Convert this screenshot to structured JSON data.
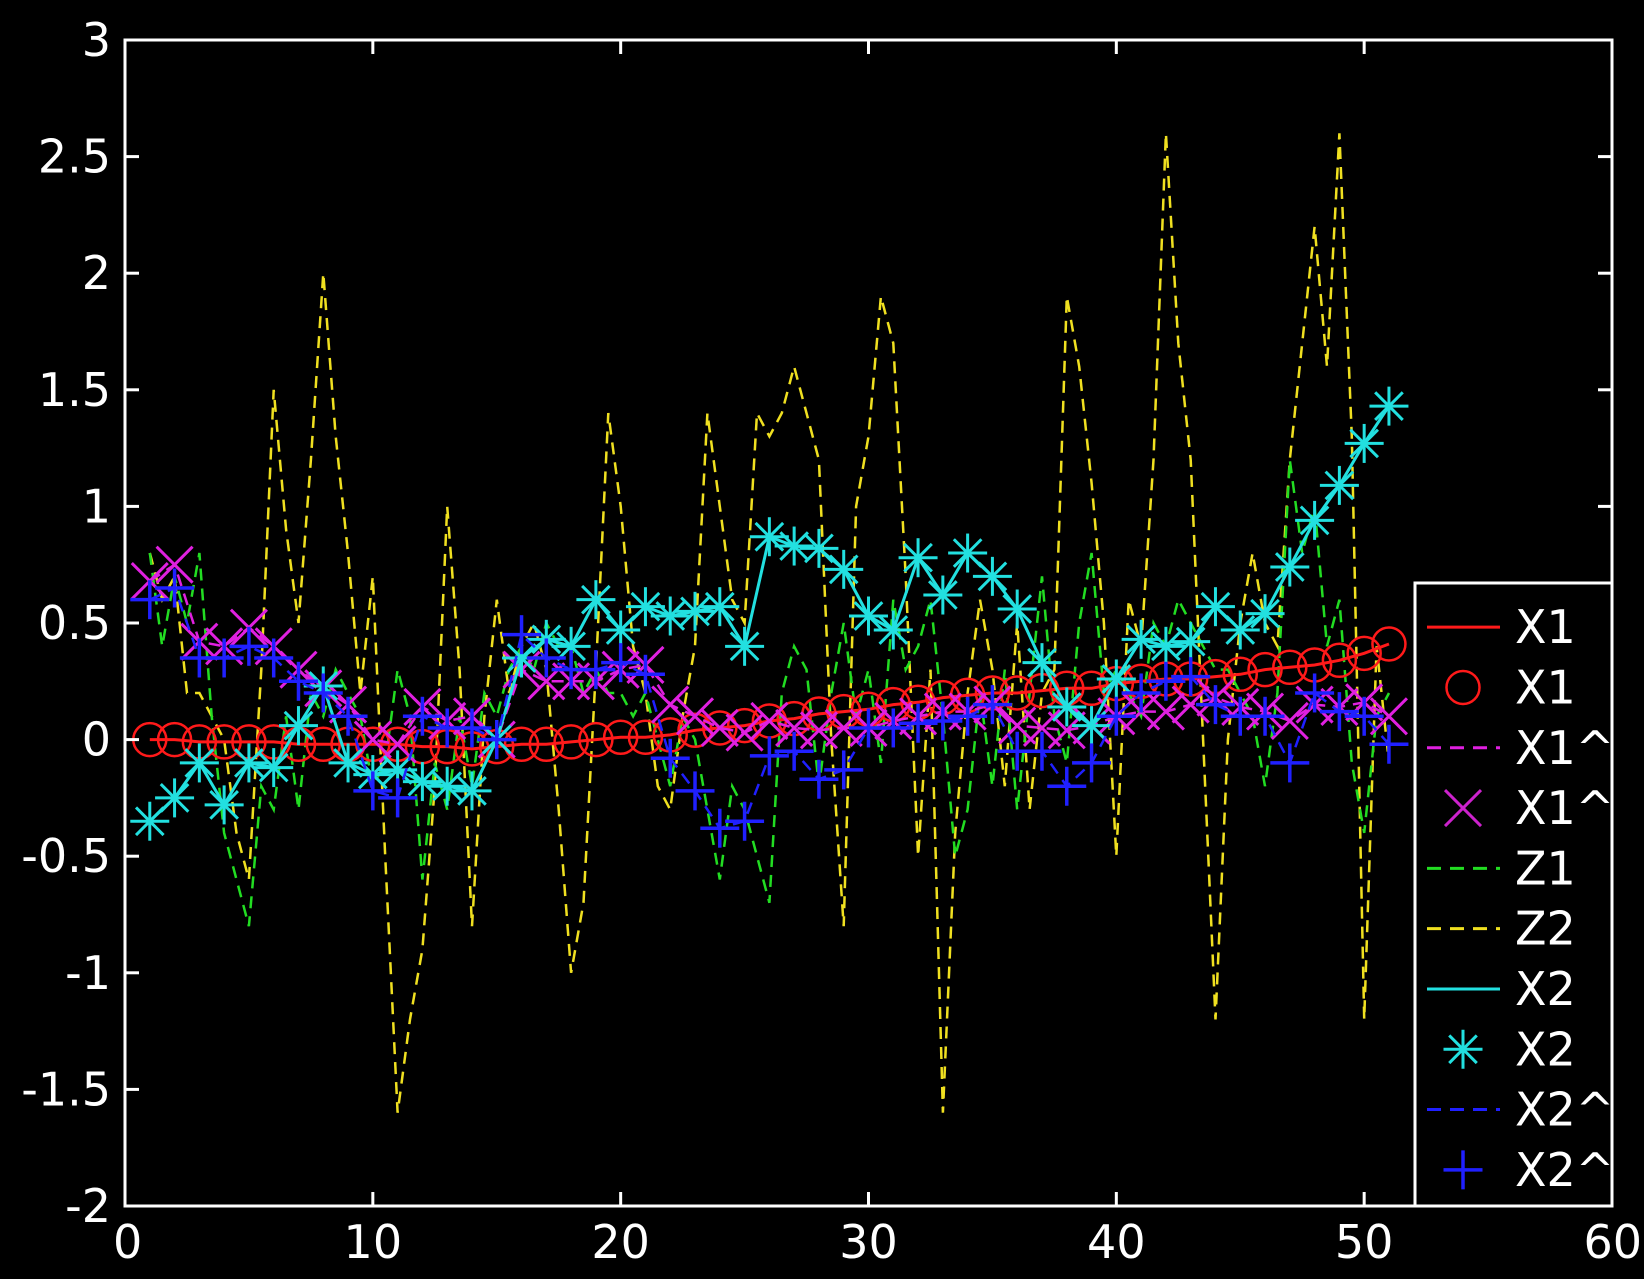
{
  "chart_data": {
    "type": "line",
    "title": "",
    "xlabel": "",
    "ylabel": "",
    "xlim": [
      0,
      60
    ],
    "ylim": [
      -2,
      3
    ],
    "xticks": [
      0,
      10,
      20,
      30,
      40,
      50,
      60
    ],
    "yticks": [
      3,
      2.5,
      2,
      1.5,
      1,
      0.5,
      0,
      -0.5,
      -1,
      -1.5,
      -2
    ],
    "xtick_labels": [
      "0",
      "10",
      "20",
      "30",
      "40",
      "50",
      "60"
    ],
    "ytick_labels": [
      "3",
      "2.5",
      "2",
      "1.5",
      "1",
      "0.5",
      "0",
      "-0.5",
      "-1",
      "-1.5",
      "-2"
    ],
    "grid": false,
    "background": "#000000",
    "axis_color": "#ffffff",
    "legend": {
      "placement": "right-bottom",
      "entries": [
        {
          "label": "X1",
          "color": "#ff1a1a",
          "style": "solid",
          "marker": "none"
        },
        {
          "label": "X1",
          "color": "#ff1a1a",
          "style": "none",
          "marker": "circle"
        },
        {
          "label": "X1^",
          "color": "#e020e0",
          "style": "dashed",
          "marker": "none"
        },
        {
          "label": "X1^",
          "color": "#cc22cc",
          "style": "none",
          "marker": "x"
        },
        {
          "label": "Z1",
          "color": "#22dd22",
          "style": "dashed",
          "marker": "none"
        },
        {
          "label": "Z2",
          "color": "#f0e020",
          "style": "dashed",
          "marker": "none"
        },
        {
          "label": "X2",
          "color": "#22e0e0",
          "style": "solid",
          "marker": "none"
        },
        {
          "label": "X2",
          "color": "#22e0e0",
          "style": "none",
          "marker": "star"
        },
        {
          "label": "X2^",
          "color": "#2020ff",
          "style": "dashed",
          "marker": "none"
        },
        {
          "label": "X2^",
          "color": "#2020ff",
          "style": "none",
          "marker": "plus"
        }
      ]
    },
    "series": [
      {
        "color": "#ff1a1a",
        "style": "solid",
        "marker": "circle",
        "x": [
          1,
          2,
          3,
          4,
          5,
          6,
          7,
          8,
          9,
          10,
          11,
          12,
          13,
          14,
          15,
          16,
          17,
          18,
          19,
          20,
          21,
          22,
          23,
          24,
          25,
          26,
          27,
          28,
          29,
          30,
          31,
          32,
          33,
          34,
          35,
          36,
          37,
          38,
          39,
          40,
          41,
          42,
          43,
          44,
          45,
          46,
          47,
          48,
          49,
          50,
          51
        ],
        "y": [
          0,
          0,
          -0.01,
          -0.01,
          -0.01,
          -0.01,
          -0.02,
          -0.02,
          -0.02,
          -0.02,
          -0.02,
          -0.03,
          -0.03,
          -0.04,
          -0.03,
          -0.02,
          -0.02,
          -0.01,
          0,
          0.01,
          0.01,
          0.02,
          0.04,
          0.05,
          0.06,
          0.08,
          0.09,
          0.11,
          0.12,
          0.13,
          0.15,
          0.16,
          0.18,
          0.19,
          0.2,
          0.2,
          0.21,
          0.22,
          0.22,
          0.24,
          0.25,
          0.26,
          0.26,
          0.27,
          0.28,
          0.3,
          0.31,
          0.32,
          0.34,
          0.37,
          0.41
        ]
      },
      {
        "color": "#e020e0",
        "style": "dashed",
        "marker": "x",
        "x": [
          1,
          2,
          3,
          4,
          5,
          6,
          7,
          8,
          9,
          10,
          11,
          12,
          13,
          14,
          15,
          16,
          17,
          18,
          19,
          20,
          21,
          22,
          23,
          24,
          25,
          26,
          27,
          28,
          29,
          30,
          31,
          32,
          33,
          34,
          35,
          36,
          37,
          38,
          39,
          40,
          41,
          42,
          43,
          44,
          45,
          46,
          47,
          48,
          49,
          50,
          51
        ],
        "y": [
          0.68,
          0.75,
          0.42,
          0.4,
          0.48,
          0.4,
          0.3,
          0.22,
          0.15,
          0,
          -0.02,
          0.14,
          0.08,
          0.1,
          0,
          0.3,
          0.25,
          0.25,
          0.25,
          0.3,
          0.32,
          0.15,
          0.1,
          0.05,
          0.03,
          0.08,
          0.05,
          0.04,
          0.05,
          0.05,
          0.08,
          0.1,
          0.12,
          0.12,
          0.15,
          0.06,
          0.05,
          0.04,
          0.06,
          0.1,
          0.12,
          0.12,
          0.15,
          0.18,
          0.14,
          0.12,
          0.08,
          0.15,
          0.14,
          0.16,
          0.1
        ]
      },
      {
        "color": "#22dd22",
        "style": "dashed",
        "marker": "none",
        "x": [
          1,
          1.5,
          2,
          2.5,
          3,
          3.5,
          4,
          4.5,
          5,
          5.5,
          6,
          6.5,
          7,
          7.5,
          8,
          8.5,
          9,
          9.5,
          10,
          10.5,
          11,
          11.5,
          12,
          12.5,
          13,
          13.5,
          14,
          14.5,
          15,
          15.5,
          16,
          16.5,
          17,
          17.5,
          18,
          18.5,
          19,
          19.5,
          20,
          20.5,
          21,
          21.5,
          22,
          22.5,
          23,
          23.5,
          24,
          24.5,
          25,
          25.5,
          26,
          26.5,
          27,
          27.5,
          28,
          28.5,
          29,
          29.5,
          30,
          30.5,
          31,
          31.5,
          32,
          32.5,
          33,
          33.5,
          34,
          34.5,
          35,
          35.5,
          36,
          36.5,
          37,
          37.5,
          38,
          38.5,
          39,
          39.5,
          40,
          40.5,
          41,
          41.5,
          42,
          42.5,
          43,
          43.5,
          44,
          44.5,
          45,
          45.5,
          46,
          46.5,
          47,
          47.5,
          48,
          48.5,
          49,
          49.5,
          50,
          50.5,
          51
        ],
        "y": [
          0.8,
          0.4,
          0.7,
          0.5,
          0.8,
          0.1,
          -0.4,
          -0.6,
          -0.8,
          -0.2,
          -0.3,
          0.1,
          -0.3,
          0.2,
          0.1,
          0.3,
          0.2,
          0.1,
          -0.2,
          -0.1,
          0.3,
          0.1,
          -0.6,
          -0.1,
          -0.3,
          0.1,
          -0.2,
          0.2,
          0.1,
          0.3,
          0.4,
          0.3,
          0.5,
          0.4,
          0.4,
          0.2,
          0.3,
          0.2,
          0.2,
          0.1,
          0.2,
          0,
          -0.2,
          0.1,
          0,
          -0.3,
          -0.6,
          -0.2,
          -0.3,
          -0.5,
          -0.7,
          0.2,
          0.4,
          0.3,
          -0.2,
          0.2,
          0.5,
          0.1,
          0.3,
          -0.1,
          0.6,
          0.3,
          0.4,
          0.6,
          0.1,
          -0.5,
          -0.3,
          0.2,
          -0.2,
          0.3,
          -0.3,
          0.2,
          0.7,
          0.1,
          -0.1,
          0.5,
          0.8,
          0.2,
          0.3,
          0.2,
          0.1,
          0.5,
          0.4,
          0.6,
          0.5,
          0.4,
          0.3,
          0.3,
          0.2,
          0.1,
          -0.2,
          0.2,
          1.2,
          0.8,
          1,
          0.4,
          0.6,
          -0.1,
          -0.4,
          0.1,
          0.2
        ]
      },
      {
        "color": "#f0e020",
        "style": "dashed",
        "marker": "none",
        "x": [
          1,
          1.5,
          2,
          2.5,
          3,
          3.5,
          4,
          4.5,
          5,
          5.5,
          6,
          6.5,
          7,
          7.5,
          8,
          8.5,
          9,
          9.5,
          10,
          10.5,
          11,
          11.5,
          12,
          12.5,
          13,
          13.5,
          14,
          14.5,
          15,
          15.5,
          16,
          16.5,
          17,
          17.5,
          18,
          18.5,
          19,
          19.5,
          20,
          20.5,
          21,
          21.5,
          22,
          22.5,
          23,
          23.5,
          24,
          24.5,
          25,
          25.5,
          26,
          26.5,
          27,
          27.5,
          28,
          28.5,
          29,
          29.5,
          30,
          30.5,
          31,
          31.5,
          32,
          32.5,
          33,
          33.5,
          34,
          34.5,
          35,
          35.5,
          36,
          36.5,
          37,
          37.5,
          38,
          38.5,
          39,
          39.5,
          40,
          40.5,
          41,
          41.5,
          42,
          42.5,
          43,
          43.5,
          44,
          44.5,
          45,
          45.5,
          46,
          46.5,
          47,
          47.5,
          48,
          48.5,
          49,
          49.5,
          50,
          50.5,
          51
        ],
        "y": [
          0.8,
          0.6,
          0.7,
          0.2,
          0.2,
          0.1,
          0,
          -0.4,
          -0.6,
          0.3,
          1.5,
          0.9,
          0.5,
          1.2,
          2,
          1.3,
          0.8,
          0.2,
          0.7,
          -0.5,
          -1.6,
          -1.2,
          -0.9,
          -0.2,
          1,
          0.3,
          -0.8,
          0.1,
          0.6,
          0.2,
          0.4,
          0.5,
          0.3,
          -0.3,
          -1,
          -0.7,
          0.3,
          1.4,
          1,
          0.4,
          0.2,
          -0.2,
          -0.3,
          0.1,
          0.4,
          1.4,
          1,
          0.6,
          0.5,
          1.4,
          1.3,
          1.4,
          1.6,
          1.4,
          1.2,
          0,
          -0.8,
          1,
          1.3,
          1.9,
          1.7,
          0.7,
          -0.5,
          0.3,
          -1.6,
          -0.4,
          0.2,
          0.6,
          0.3,
          -0.2,
          0.5,
          -0.3,
          0.2,
          0.3,
          1.9,
          1.6,
          1.1,
          0.5,
          -0.5,
          0.6,
          0.4,
          1.2,
          2.6,
          1.7,
          1.2,
          0,
          -1.2,
          0,
          0.5,
          0.8,
          0.5,
          0.4,
          1.2,
          1.7,
          2.2,
          1.6,
          2.6,
          1.3,
          -1.2,
          0.4,
          -0.1
        ]
      },
      {
        "color": "#22e0e0",
        "style": "solid",
        "marker": "star",
        "x": [
          1,
          2,
          3,
          4,
          5,
          6,
          7,
          8,
          9,
          10,
          11,
          12,
          13,
          14,
          15,
          16,
          17,
          18,
          19,
          20,
          21,
          22,
          23,
          24,
          25,
          26,
          27,
          28,
          29,
          30,
          31,
          32,
          33,
          34,
          35,
          36,
          37,
          38,
          39,
          40,
          41,
          42,
          43,
          44,
          45,
          46,
          47,
          48,
          49,
          50,
          51
        ],
        "y": [
          -0.35,
          -0.25,
          -0.1,
          -0.28,
          -0.1,
          -0.12,
          0.06,
          0.23,
          -0.1,
          -0.15,
          -0.13,
          -0.18,
          -0.2,
          -0.22,
          0,
          0.35,
          0.43,
          0.4,
          0.6,
          0.47,
          0.57,
          0.53,
          0.55,
          0.57,
          0.4,
          0.87,
          0.83,
          0.82,
          0.73,
          0.53,
          0.47,
          0.78,
          0.62,
          0.8,
          0.7,
          0.56,
          0.33,
          0.14,
          0.06,
          0.26,
          0.43,
          0.4,
          0.42,
          0.57,
          0.47,
          0.54,
          0.74,
          0.94,
          1.09,
          1.27,
          1.43
        ]
      },
      {
        "color": "#2020ff",
        "style": "dashed",
        "marker": "plus",
        "x": [
          1,
          2,
          3,
          4,
          5,
          6,
          7,
          8,
          9,
          10,
          11,
          12,
          13,
          14,
          15,
          16,
          17,
          18,
          19,
          20,
          21,
          22,
          23,
          24,
          25,
          26,
          27,
          28,
          29,
          30,
          31,
          32,
          33,
          34,
          35,
          36,
          37,
          38,
          39,
          40,
          41,
          42,
          43,
          44,
          45,
          46,
          47,
          48,
          49,
          50,
          51
        ],
        "y": [
          0.6,
          0.65,
          0.35,
          0.35,
          0.4,
          0.35,
          0.25,
          0.2,
          0.1,
          -0.22,
          -0.25,
          0.1,
          0.05,
          0.05,
          0,
          0.45,
          0.35,
          0.3,
          0.3,
          0.33,
          0.28,
          -0.08,
          -0.22,
          -0.38,
          -0.35,
          -0.07,
          -0.05,
          -0.17,
          -0.13,
          0.05,
          0.05,
          0.07,
          0.08,
          0.1,
          0.15,
          -0.05,
          -0.05,
          -0.2,
          -0.1,
          0.1,
          0.2,
          0.25,
          0.27,
          0.15,
          0.1,
          0.1,
          -0.1,
          0.2,
          0.12,
          0.1,
          -0.02
        ]
      }
    ]
  }
}
